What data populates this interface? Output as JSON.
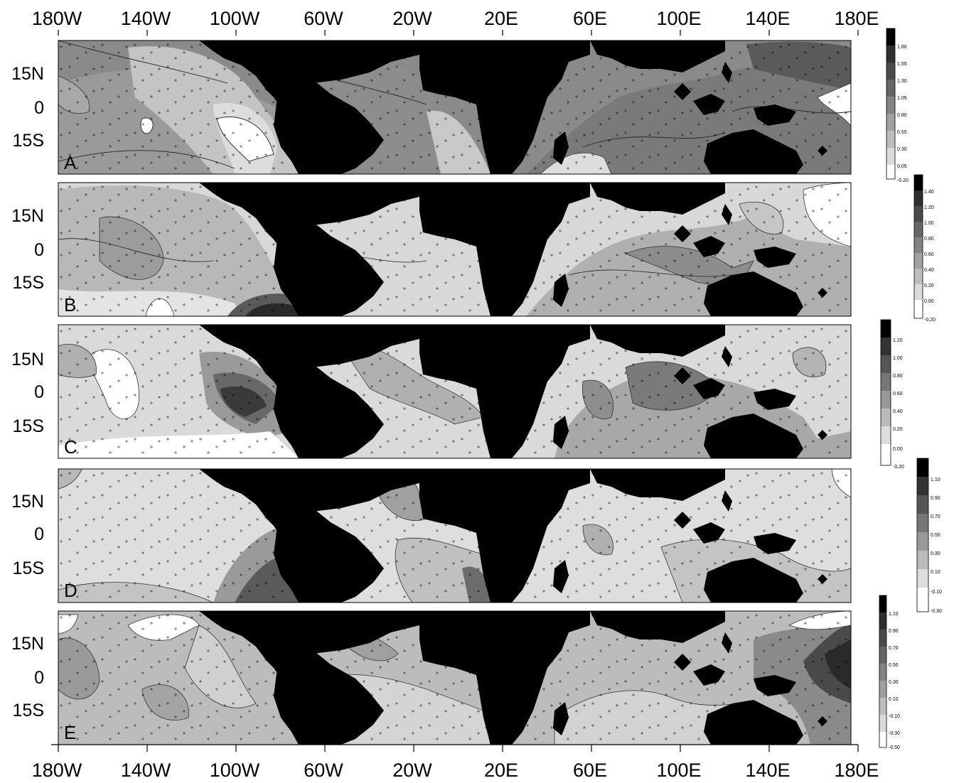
{
  "figure": {
    "lon_ticks_top": [
      "180W",
      "140W",
      "100W",
      "60W",
      "20W",
      "20E",
      "60E",
      "100E",
      "140E",
      "180E"
    ],
    "lon_ticks_bottom": [
      "180W",
      "140W",
      "100W",
      "60W",
      "20W",
      "20E",
      "60E",
      "100E",
      "140E",
      "180E"
    ],
    "lat_ticks": [
      "15N",
      "0",
      "15S"
    ]
  },
  "panels": [
    {
      "id": "A",
      "label": "A",
      "colorbar": [
        "1.80",
        "1.55",
        "1.30",
        "1.05",
        "0.80",
        "0.55",
        "0.30",
        "0.05",
        "-0.20"
      ]
    },
    {
      "id": "B",
      "label": "B",
      "colorbar": [
        "1.40",
        "1.20",
        "1.00",
        "0.80",
        "0.60",
        "0.40",
        "0.20",
        "0.00",
        "-0.20"
      ]
    },
    {
      "id": "C",
      "label": "C",
      "colorbar": [
        "1.20",
        "1.00",
        "0.80",
        "0.60",
        "0.40",
        "0.20",
        "0.00",
        "-0.20"
      ]
    },
    {
      "id": "D",
      "label": "D",
      "colorbar": [
        "1.10",
        "0.90",
        "0.70",
        "0.50",
        "0.30",
        "0.10",
        "-0.10",
        "-0.30"
      ]
    },
    {
      "id": "E",
      "label": "E",
      "colorbar": [
        "1.10",
        "0.90",
        "0.70",
        "0.50",
        "0.30",
        "0.10",
        "-0.10",
        "-0.30",
        "-0.50"
      ]
    }
  ]
}
